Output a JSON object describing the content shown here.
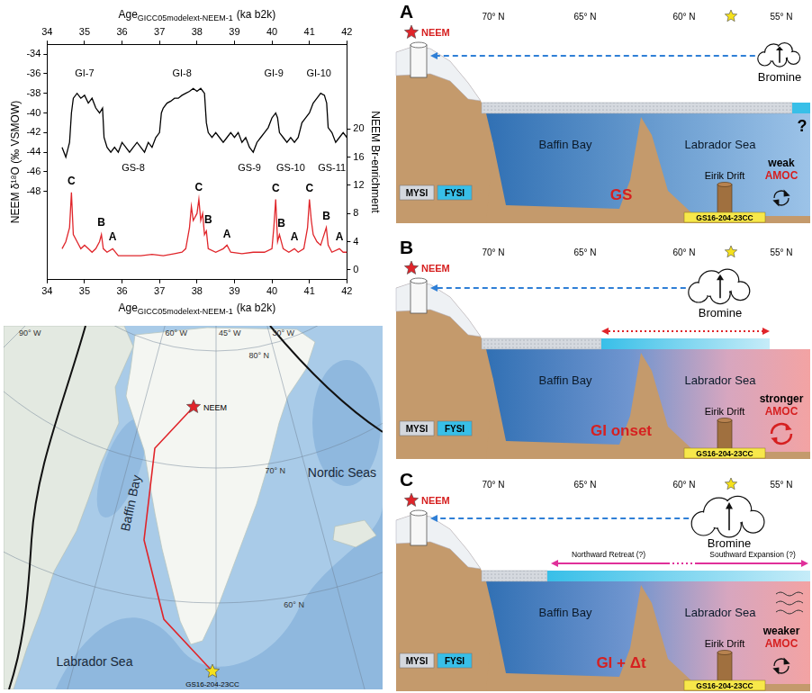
{
  "chart_data": {
    "type": "line",
    "xlabel": {
      "text": "Age",
      "subscript": "GICC05modelext-NEEM-1",
      "suffix": "(ka b2k)"
    },
    "ylabel": "NEEM δ¹⁸O (‰ VSMOW)",
    "y2label": "NEEM Br-enrichment",
    "xlim": [
      34,
      42
    ],
    "xticks": [
      34,
      35,
      36,
      37,
      38,
      39,
      40,
      41,
      42
    ],
    "ylim": [
      -57,
      -33
    ],
    "yticks": [
      -48,
      -46,
      -44,
      -42,
      -40,
      -38,
      -36,
      -34
    ],
    "y2lim": [
      -1.4,
      32
    ],
    "y2ticks": [
      0,
      4,
      8,
      12,
      16,
      20
    ],
    "grid": false,
    "series": [
      {
        "color": "#000000",
        "axis": "y",
        "x": [
          34.4,
          34.5,
          34.6,
          34.65,
          34.7,
          34.8,
          34.9,
          35,
          35.1,
          35.2,
          35.3,
          35.4,
          35.48,
          35.52,
          35.6,
          35.7,
          35.8,
          35.9,
          36,
          36.1,
          36.2,
          36.3,
          36.4,
          36.5,
          36.6,
          36.7,
          36.8,
          36.9,
          37,
          37.05,
          37.1,
          37.2,
          37.3,
          37.4,
          37.5,
          37.6,
          37.7,
          37.8,
          37.9,
          38,
          38.1,
          38.2,
          38.25,
          38.3,
          38.4,
          38.5,
          38.6,
          38.7,
          38.8,
          38.9,
          39,
          39.1,
          39.2,
          39.3,
          39.4,
          39.5,
          39.6,
          39.7,
          39.8,
          39.9,
          40,
          40.1,
          40.15,
          40.2,
          40.3,
          40.4,
          40.5,
          40.6,
          40.7,
          40.8,
          40.9,
          41,
          41.1,
          41.2,
          41.3,
          41.4,
          41.46,
          41.5,
          41.6,
          41.7,
          41.8,
          41.9,
          42
        ],
        "values": [
          -43.5,
          -44.5,
          -43,
          -40,
          -38.5,
          -38,
          -38.5,
          -38.2,
          -39,
          -38.5,
          -39.5,
          -40,
          -39.5,
          -42.5,
          -43.5,
          -44,
          -43.5,
          -44,
          -43,
          -43.5,
          -44,
          -43.5,
          -43,
          -43.5,
          -44,
          -43,
          -43.5,
          -42.5,
          -42,
          -40,
          -39.5,
          -39,
          -38.8,
          -38.5,
          -38.5,
          -38.2,
          -38,
          -37.8,
          -37.5,
          -37.8,
          -37.5,
          -38,
          -41,
          -42,
          -42.5,
          -42,
          -42.5,
          -43,
          -42.5,
          -42,
          -42.5,
          -42,
          -43,
          -42.5,
          -43.5,
          -44,
          -43,
          -42.5,
          -42,
          -41.5,
          -40.5,
          -40,
          -40.5,
          -42,
          -42.5,
          -43,
          -42.5,
          -43,
          -42.5,
          -41,
          -40.5,
          -40,
          -39,
          -38.5,
          -38,
          -38.2,
          -39,
          -41.5,
          -42,
          -43,
          -42.5,
          -42,
          -42.5
        ]
      },
      {
        "color": "#e0262b",
        "axis": "y2",
        "x": [
          34.4,
          34.5,
          34.6,
          34.65,
          34.7,
          34.8,
          34.9,
          35,
          35.1,
          35.2,
          35.3,
          35.4,
          35.45,
          35.5,
          35.6,
          35.75,
          35.9,
          36.2,
          36.5,
          36.8,
          37.1,
          37.4,
          37.6,
          37.7,
          37.8,
          37.85,
          37.9,
          38,
          38.05,
          38.1,
          38.15,
          38.2,
          38.25,
          38.3,
          38.5,
          38.7,
          38.8,
          38.9,
          39.2,
          39.5,
          39.8,
          40,
          40.05,
          40.1,
          40.15,
          40.2,
          40.3,
          40.45,
          40.6,
          40.7,
          40.85,
          40.95,
          41,
          41.05,
          41.1,
          41.2,
          41.3,
          41.45,
          41.5,
          41.6,
          41.8,
          41.9,
          42
        ],
        "values": [
          3,
          4,
          6,
          11,
          5,
          4,
          3,
          3.5,
          3,
          2.5,
          3,
          4,
          5,
          3,
          2.5,
          3,
          2,
          2,
          2,
          2.2,
          2,
          2.3,
          2.5,
          3,
          6,
          9,
          7,
          8,
          10,
          7,
          8,
          5,
          5.5,
          3,
          2.5,
          3,
          3.5,
          2.5,
          2.3,
          2.5,
          2.5,
          3,
          6,
          10,
          4,
          5,
          3,
          2.5,
          3,
          2.5,
          3,
          6,
          10,
          7,
          5,
          4,
          3.5,
          6,
          3.5,
          2.5,
          3,
          2.5,
          2.5
        ]
      }
    ],
    "annotations": [
      {
        "text": "GI-7",
        "x": 35.0,
        "y": -36
      },
      {
        "text": "GI-8",
        "x": 37.6,
        "y": -36
      },
      {
        "text": "GI-9",
        "x": 40.05,
        "y": -36
      },
      {
        "text": "GI-10",
        "x": 41.25,
        "y": -36
      },
      {
        "text": "GS-8",
        "x": 36.3,
        "y": -45.6
      },
      {
        "text": "GS-9",
        "x": 39.4,
        "y": -45.6
      },
      {
        "text": "GS-10",
        "x": 40.5,
        "y": -45.6
      },
      {
        "text": "GS-11",
        "x": 41.6,
        "y": -45.6
      },
      {
        "text": "C",
        "x": 34.65,
        "y": 12.5,
        "axis": "y2"
      },
      {
        "text": "B",
        "x": 35.45,
        "y": 6.6,
        "axis": "y2"
      },
      {
        "text": "A",
        "x": 35.75,
        "y": 4.6,
        "axis": "y2"
      },
      {
        "text": "C",
        "x": 38.05,
        "y": 11.6,
        "axis": "y2"
      },
      {
        "text": "B",
        "x": 38.3,
        "y": 7,
        "axis": "y2"
      },
      {
        "text": "A",
        "x": 38.8,
        "y": 5,
        "axis": "y2"
      },
      {
        "text": "C",
        "x": 40.1,
        "y": 11.5,
        "axis": "y2"
      },
      {
        "text": "B",
        "x": 40.25,
        "y": 6.5,
        "axis": "y2"
      },
      {
        "text": "A",
        "x": 40.6,
        "y": 4.6,
        "axis": "y2"
      },
      {
        "text": "C",
        "x": 41.0,
        "y": 11.5,
        "axis": "y2"
      },
      {
        "text": "B",
        "x": 41.45,
        "y": 7.5,
        "axis": "y2"
      },
      {
        "text": "A",
        "x": 41.8,
        "y": 4.6,
        "axis": "y2"
      }
    ]
  },
  "map": {
    "site": "NEEM",
    "core": "GS16-204-23CC",
    "seas": [
      "Baffin Bay",
      "Labrador Sea",
      "Nordic Seas"
    ],
    "latitudes": [
      "80° N",
      "70° N",
      "60° N"
    ],
    "longitudes": [
      "90° W",
      "60° W",
      "45° W",
      "30° W"
    ]
  },
  "schematic": {
    "site": "NEEM",
    "latitudes": [
      "70° N",
      "65° N",
      "60° N",
      "55° N"
    ],
    "basins": [
      "Baffin Bay",
      "Labrador Sea"
    ],
    "drift": "Eirik Drift",
    "core": "GS16-204-23CC",
    "ice_types": [
      "MYSI",
      "FYSI"
    ],
    "source": "Bromine",
    "circulation": "AMOC",
    "panels": [
      {
        "letter": "A",
        "stage": "GS",
        "amoc": "weak",
        "note": "?"
      },
      {
        "letter": "B",
        "stage": "GI onset",
        "amoc": "stronger"
      },
      {
        "letter": "C",
        "stage": "GI + Δt",
        "amoc": "weaker",
        "ice_edge": [
          "Northward Retreat (?)",
          "Southward Expansion (?)"
        ]
      }
    ]
  }
}
